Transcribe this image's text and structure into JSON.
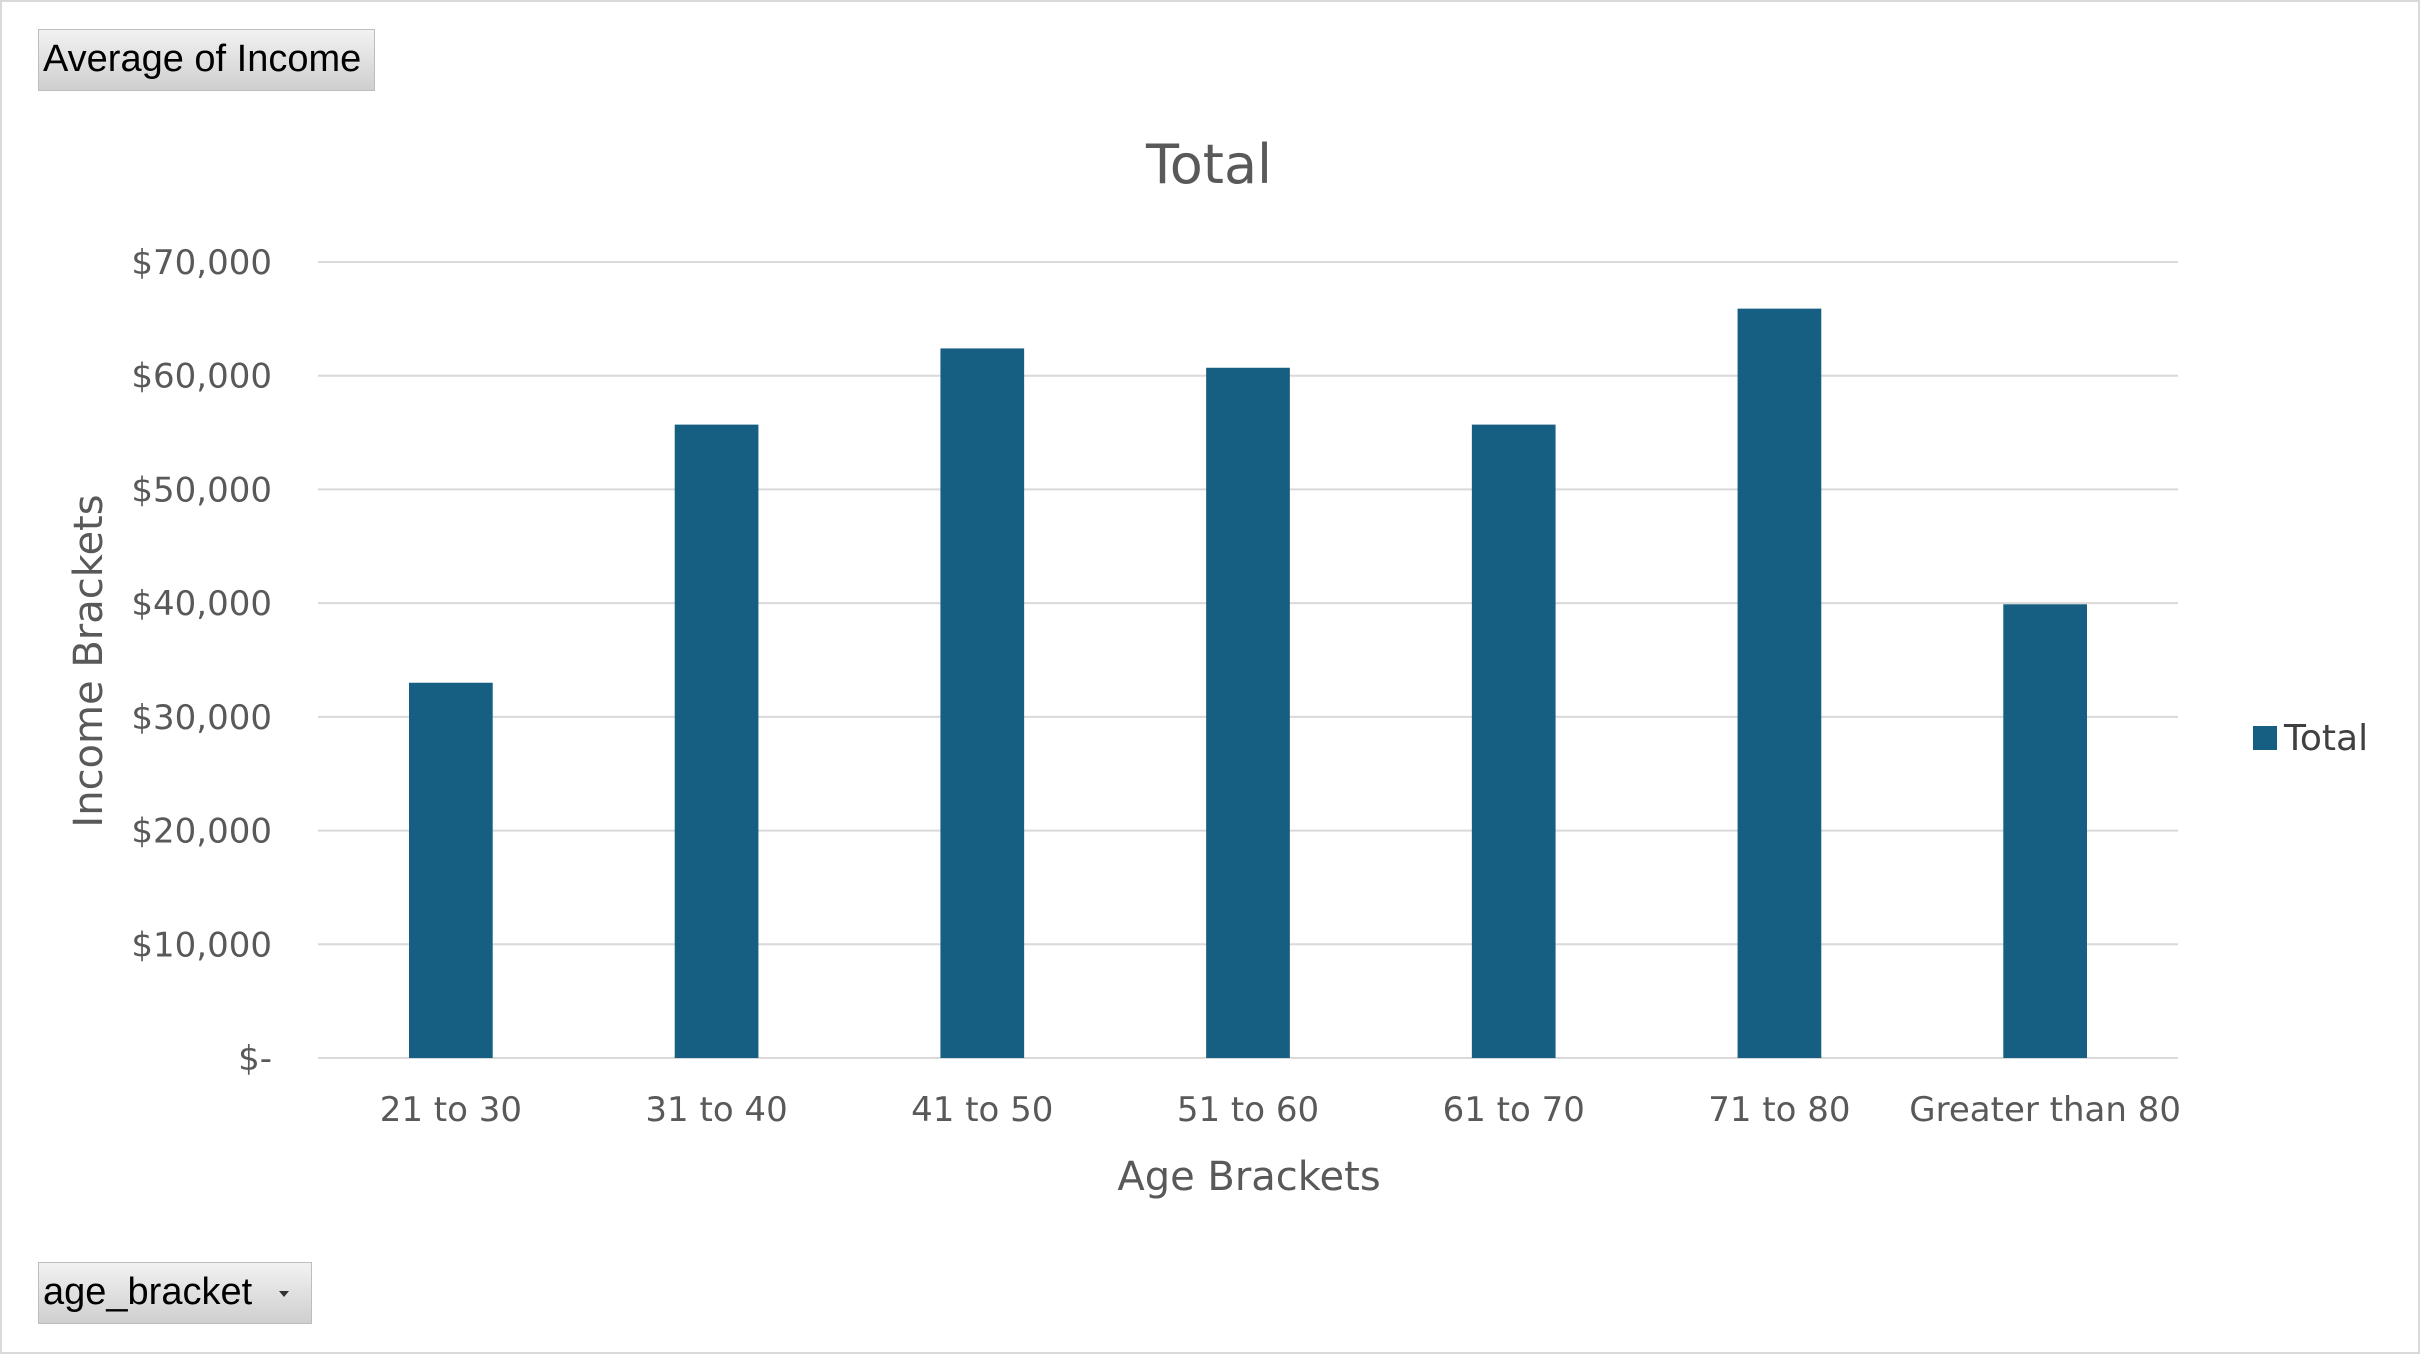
{
  "pivot_fields": {
    "value_field_label": "Average  of Income",
    "axis_field_label": "age_bracket"
  },
  "colors": {
    "bar": "#175f82",
    "gridline": "#d9d9d9",
    "text": "#595959"
  },
  "icons": {
    "axis_field_dropdown": "chevron-down-icon"
  },
  "chart_data": {
    "type": "bar",
    "title": "Total",
    "xlabel": "Age Brackets",
    "ylabel": "Income Brackets",
    "categories": [
      "21 to 30",
      "31 to 40",
      "41 to 50",
      "51 to 60",
      "61 to 70",
      "71 to 80",
      "Greater than 80"
    ],
    "series": [
      {
        "name": "Total",
        "values": [
          33000,
          55700,
          62400,
          60700,
          55700,
          65900,
          39900
        ]
      }
    ],
    "ylim": [
      0,
      70000
    ],
    "yticks": [
      0,
      10000,
      20000,
      30000,
      40000,
      50000,
      60000,
      70000
    ],
    "ytick_labels": [
      "$-",
      "$10,000",
      "$20,000",
      "$30,000",
      "$40,000",
      "$50,000",
      "$60,000",
      "$70,000"
    ],
    "grid": true,
    "legend": "right"
  }
}
